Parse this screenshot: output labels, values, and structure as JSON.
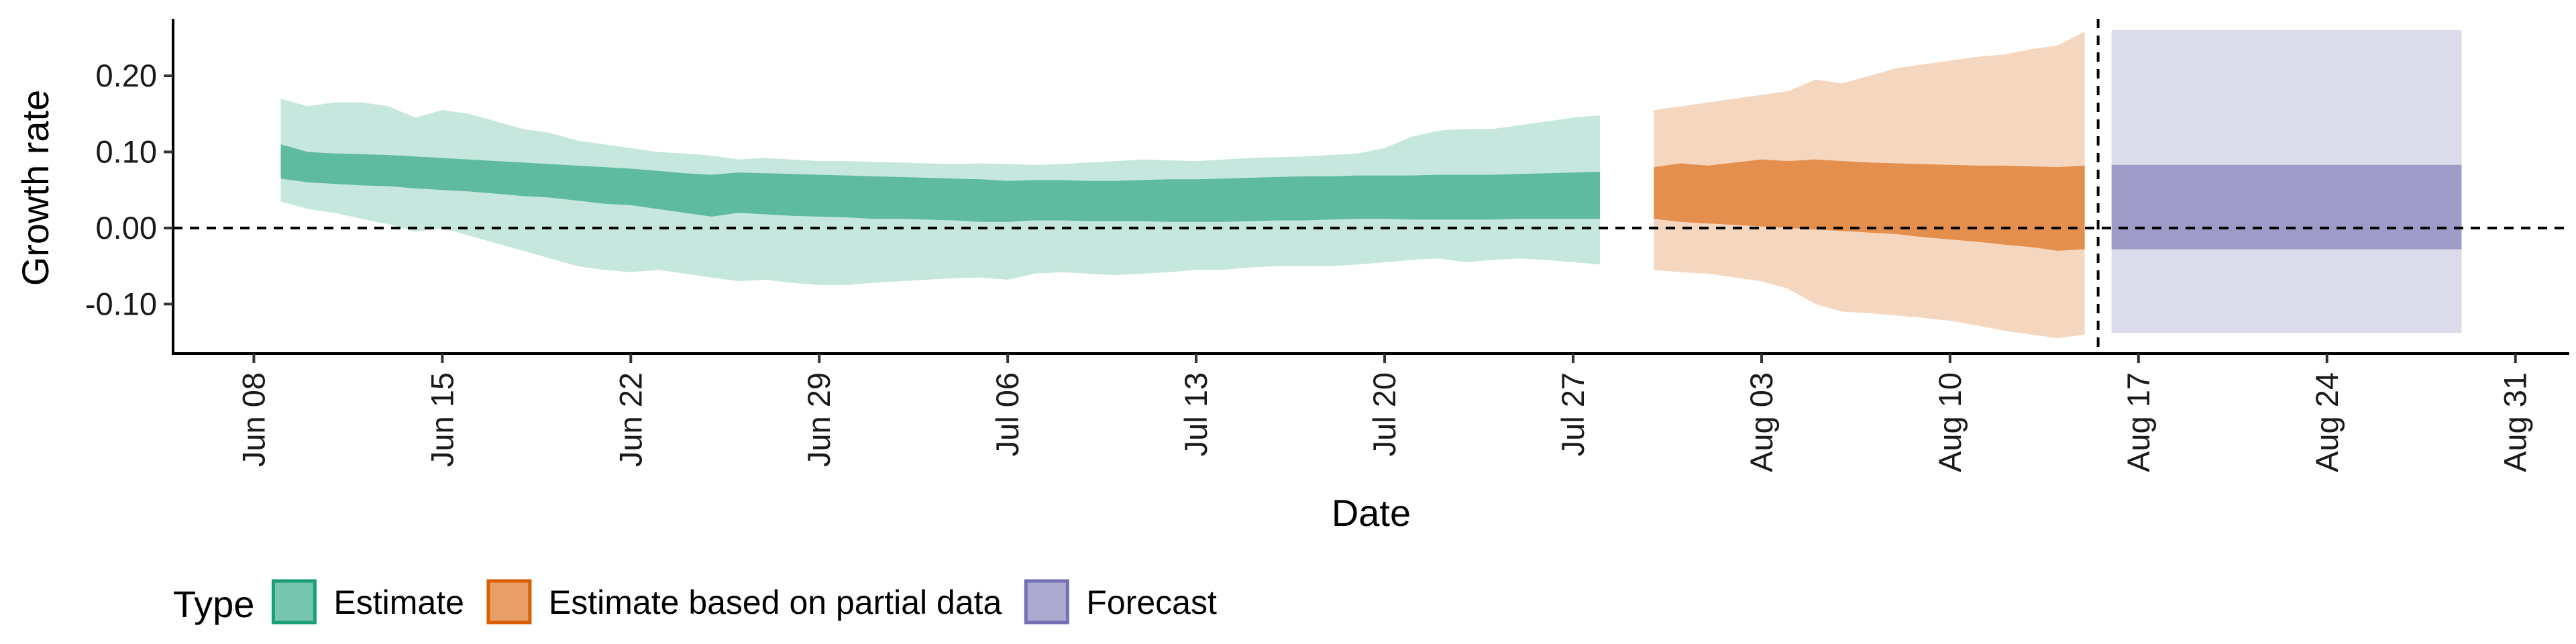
{
  "chart_data": {
    "type": "area",
    "title": "",
    "xlabel": "Date",
    "ylabel": "Growth rate",
    "x_ticks": [
      "Jun 08",
      "Jun 15",
      "Jun 22",
      "Jun 29",
      "Jul 06",
      "Jul 13",
      "Jul 20",
      "Jul 27",
      "Aug 03",
      "Aug 10",
      "Aug 17",
      "Aug 24",
      "Aug 31"
    ],
    "y_ticks": [
      "0.20",
      "0.10",
      "0.00",
      "-0.10"
    ],
    "xlim": [
      "2020-06-05",
      "2020-09-02"
    ],
    "ylim": [
      -0.165,
      0.275
    ],
    "reference_lines": {
      "horizontal_y": 0.0,
      "vertical_x": "2020-08-15"
    },
    "legend": {
      "title": "Type",
      "position": "bottom",
      "entries": [
        "Estimate",
        "Estimate based on partial data",
        "Forecast"
      ]
    },
    "series": [
      {
        "name": "Estimate",
        "color": "#1b9e77",
        "x": [
          "2020-06-09",
          "2020-06-10",
          "2020-06-11",
          "2020-06-12",
          "2020-06-13",
          "2020-06-14",
          "2020-06-15",
          "2020-06-16",
          "2020-06-17",
          "2020-06-18",
          "2020-06-19",
          "2020-06-20",
          "2020-06-21",
          "2020-06-22",
          "2020-06-23",
          "2020-06-24",
          "2020-06-25",
          "2020-06-26",
          "2020-06-27",
          "2020-06-28",
          "2020-06-29",
          "2020-06-30",
          "2020-07-01",
          "2020-07-02",
          "2020-07-03",
          "2020-07-04",
          "2020-07-05",
          "2020-07-06",
          "2020-07-07",
          "2020-07-08",
          "2020-07-09",
          "2020-07-10",
          "2020-07-11",
          "2020-07-12",
          "2020-07-13",
          "2020-07-14",
          "2020-07-15",
          "2020-07-16",
          "2020-07-17",
          "2020-07-18",
          "2020-07-19",
          "2020-07-20",
          "2020-07-21",
          "2020-07-22",
          "2020-07-23",
          "2020-07-24",
          "2020-07-25",
          "2020-07-26",
          "2020-07-27",
          "2020-07-28"
        ],
        "lower_90": [
          0.035,
          0.025,
          0.02,
          0.012,
          0.005,
          -0.005,
          0.0,
          -0.01,
          -0.02,
          -0.03,
          -0.04,
          -0.05,
          -0.055,
          -0.058,
          -0.055,
          -0.06,
          -0.065,
          -0.07,
          -0.068,
          -0.072,
          -0.075,
          -0.075,
          -0.072,
          -0.07,
          -0.068,
          -0.066,
          -0.065,
          -0.068,
          -0.06,
          -0.058,
          -0.06,
          -0.062,
          -0.06,
          -0.058,
          -0.055,
          -0.055,
          -0.052,
          -0.05,
          -0.05,
          -0.05,
          -0.048,
          -0.045,
          -0.042,
          -0.04,
          -0.045,
          -0.042,
          -0.04,
          -0.042,
          -0.045,
          -0.048
        ],
        "lower_50": [
          0.065,
          0.06,
          0.058,
          0.056,
          0.055,
          0.052,
          0.05,
          0.048,
          0.045,
          0.042,
          0.04,
          0.036,
          0.032,
          0.03,
          0.025,
          0.02,
          0.015,
          0.02,
          0.018,
          0.016,
          0.015,
          0.014,
          0.012,
          0.012,
          0.011,
          0.01,
          0.008,
          0.008,
          0.01,
          0.01,
          0.009,
          0.009,
          0.009,
          0.008,
          0.008,
          0.008,
          0.009,
          0.01,
          0.01,
          0.011,
          0.012,
          0.012,
          0.011,
          0.011,
          0.011,
          0.011,
          0.012,
          0.012,
          0.012,
          0.012
        ],
        "upper_50": [
          0.11,
          0.1,
          0.098,
          0.097,
          0.096,
          0.094,
          0.092,
          0.09,
          0.088,
          0.086,
          0.084,
          0.082,
          0.08,
          0.078,
          0.075,
          0.072,
          0.07,
          0.073,
          0.072,
          0.071,
          0.07,
          0.069,
          0.068,
          0.067,
          0.066,
          0.065,
          0.064,
          0.062,
          0.063,
          0.063,
          0.062,
          0.062,
          0.063,
          0.064,
          0.064,
          0.065,
          0.066,
          0.067,
          0.068,
          0.068,
          0.069,
          0.069,
          0.069,
          0.07,
          0.07,
          0.07,
          0.071,
          0.072,
          0.073,
          0.074
        ],
        "upper_90": [
          0.17,
          0.16,
          0.165,
          0.165,
          0.16,
          0.145,
          0.155,
          0.15,
          0.14,
          0.13,
          0.125,
          0.115,
          0.11,
          0.105,
          0.1,
          0.098,
          0.095,
          0.09,
          0.092,
          0.09,
          0.088,
          0.088,
          0.087,
          0.086,
          0.085,
          0.084,
          0.085,
          0.084,
          0.083,
          0.084,
          0.086,
          0.088,
          0.09,
          0.089,
          0.088,
          0.09,
          0.092,
          0.093,
          0.094,
          0.096,
          0.098,
          0.105,
          0.12,
          0.128,
          0.13,
          0.13,
          0.135,
          0.14,
          0.145,
          0.148
        ]
      },
      {
        "name": "Estimate based on partial data",
        "color": "#d95f02",
        "x": [
          "2020-07-30",
          "2020-07-31",
          "2020-08-01",
          "2020-08-02",
          "2020-08-03",
          "2020-08-04",
          "2020-08-05",
          "2020-08-06",
          "2020-08-07",
          "2020-08-08",
          "2020-08-09",
          "2020-08-10",
          "2020-08-11",
          "2020-08-12",
          "2020-08-13",
          "2020-08-14",
          "2020-08-15"
        ],
        "lower_90": [
          -0.055,
          -0.058,
          -0.06,
          -0.065,
          -0.07,
          -0.08,
          -0.1,
          -0.11,
          -0.112,
          -0.115,
          -0.118,
          -0.122,
          -0.128,
          -0.135,
          -0.14,
          -0.145,
          -0.14
        ],
        "lower_50": [
          0.012,
          0.008,
          0.006,
          0.004,
          0.002,
          0.0,
          -0.002,
          -0.004,
          -0.006,
          -0.008,
          -0.012,
          -0.015,
          -0.018,
          -0.022,
          -0.025,
          -0.03,
          -0.028
        ],
        "upper_50": [
          0.08,
          0.085,
          0.082,
          0.086,
          0.09,
          0.088,
          0.09,
          0.088,
          0.086,
          0.085,
          0.084,
          0.083,
          0.082,
          0.082,
          0.081,
          0.08,
          0.082
        ],
        "upper_90": [
          0.155,
          0.16,
          0.165,
          0.17,
          0.175,
          0.18,
          0.195,
          0.19,
          0.2,
          0.21,
          0.215,
          0.22,
          0.225,
          0.228,
          0.235,
          0.24,
          0.258
        ]
      },
      {
        "name": "Forecast",
        "color": "#7570b3",
        "x": [
          "2020-08-16",
          "2020-08-29"
        ],
        "lower_90": [
          -0.138,
          -0.138
        ],
        "lower_50": [
          -0.028,
          -0.028
        ],
        "upper_50": [
          0.083,
          0.083
        ],
        "upper_90": [
          0.26,
          0.26
        ]
      }
    ]
  }
}
